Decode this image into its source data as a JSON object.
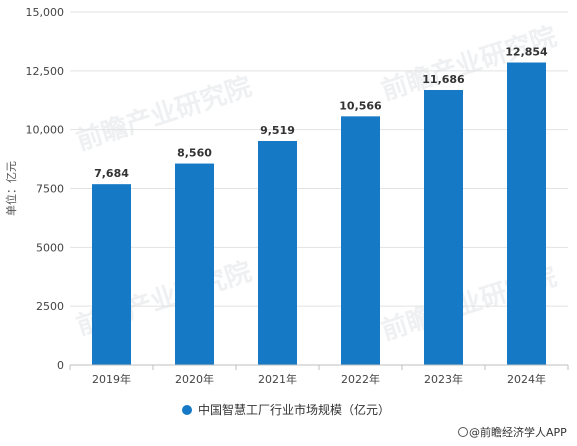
{
  "chart_data": {
    "type": "bar",
    "categories": [
      "2019年",
      "2020年",
      "2021年",
      "2022年",
      "2023年",
      "2024年"
    ],
    "series": [
      {
        "name": "中国智慧工厂行业市场规模（亿元）",
        "values": [
          7684,
          8560,
          9519,
          10566,
          11686,
          12854
        ]
      }
    ],
    "data_labels": [
      "7,684",
      "8,560",
      "9,519",
      "10,566",
      "11,686",
      "12,854"
    ],
    "yticks": [
      "0",
      "2500",
      "5000",
      "7500",
      "10,000",
      "12,500",
      "15,000"
    ],
    "ytick_values": [
      0,
      2500,
      5000,
      7500,
      10000,
      12500,
      15000
    ],
    "ylim": [
      0,
      15000
    ],
    "ylabel": "单位：亿元",
    "xlabel": "",
    "title": "",
    "grid": true,
    "legend_position": "bottom-center",
    "colors": {
      "bar": "#1579c6",
      "grid": "#e2e2e2",
      "text": "#333333"
    }
  },
  "watermark": {
    "text": "前瞻产业研究院"
  },
  "source": {
    "text": "@前瞻经济学人APP"
  }
}
